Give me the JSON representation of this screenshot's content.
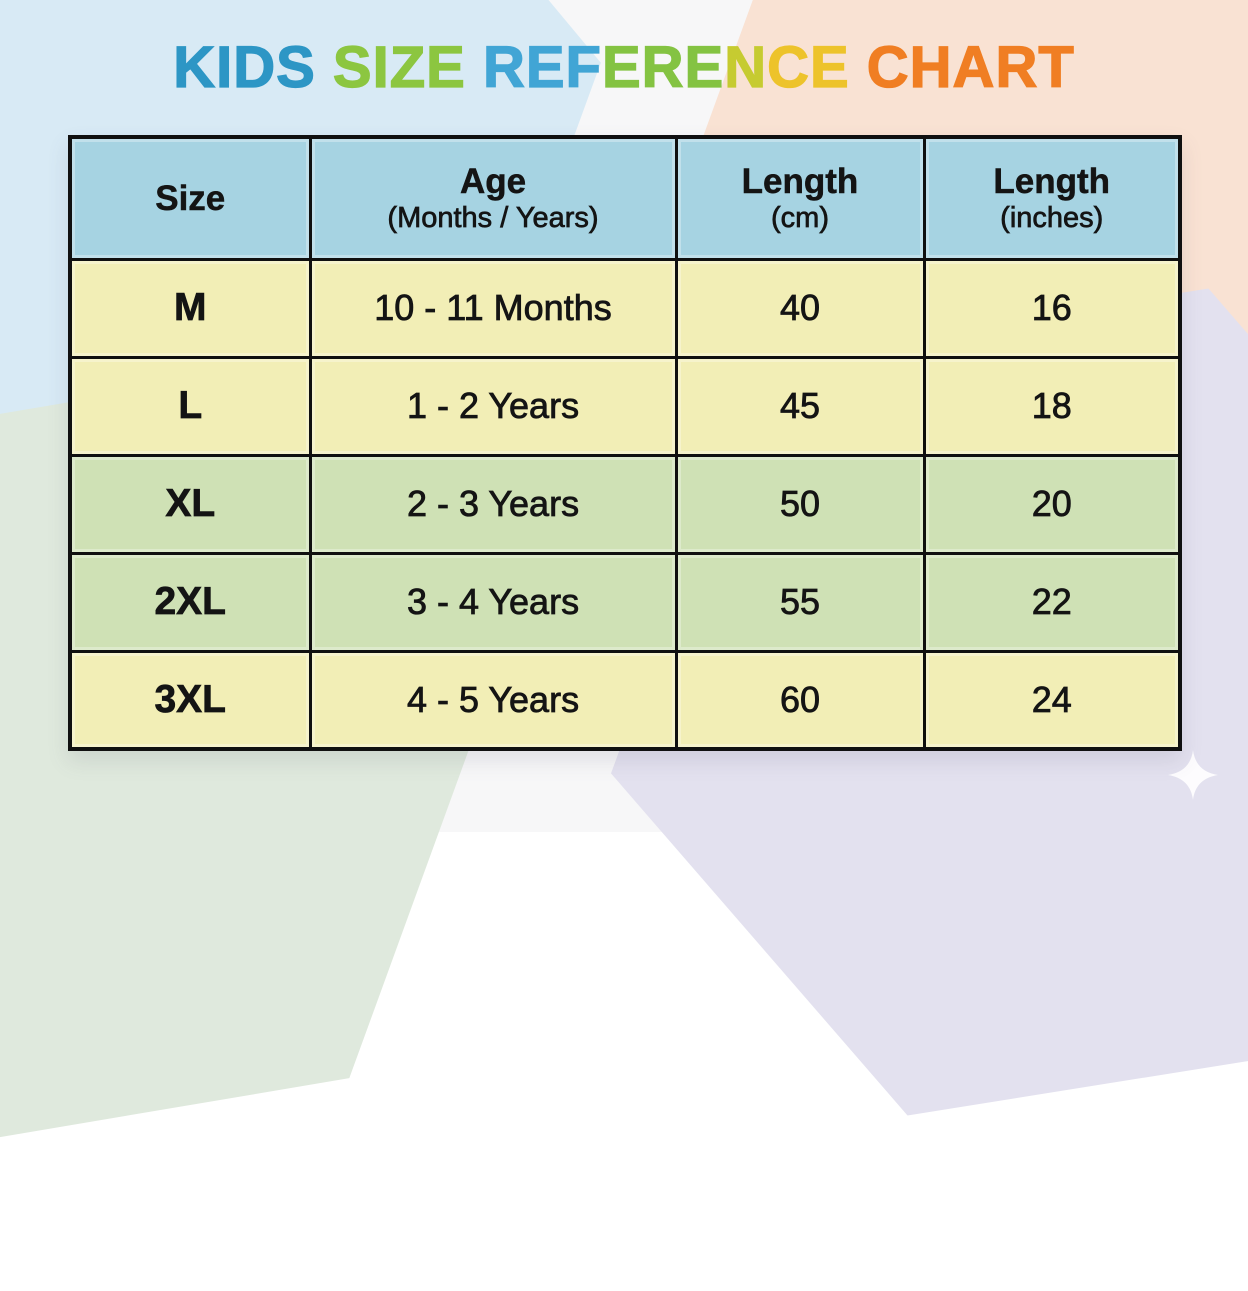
{
  "title": {
    "full_text": "KIDS SIZE REFERENCE CHART",
    "segments": [
      {
        "text": "KIDS ",
        "color": "#2D96C5"
      },
      {
        "text": "SIZE ",
        "color": "#8CC640"
      },
      {
        "text": "REF",
        "color": "#41A5D5"
      },
      {
        "text": "ERE",
        "color": "#84C342"
      },
      {
        "text": "N",
        "color": "#C6CB31"
      },
      {
        "text": "CE ",
        "color": "#EDC32B"
      },
      {
        "text": "CHART",
        "color": "#F07E23"
      }
    ]
  },
  "table": {
    "header_bg": "#A6D3E2",
    "row_colors": {
      "yellow": "#F2EEB6",
      "green": "#CFE1B5"
    },
    "header": {
      "columns": [
        {
          "label": "Size",
          "sublabel": ""
        },
        {
          "label": "Age",
          "sublabel": "(Months / Years)"
        },
        {
          "label": "Length",
          "sublabel": "(cm)"
        },
        {
          "label": "Length",
          "sublabel": "(inches)"
        }
      ]
    },
    "rows": [
      {
        "size": "M",
        "age": "10 - 11 Months",
        "length_cm": "40",
        "length_inches": "16",
        "tint": "yellow"
      },
      {
        "size": "L",
        "age": "1 - 2 Years",
        "length_cm": "45",
        "length_inches": "18",
        "tint": "yellow"
      },
      {
        "size": "XL",
        "age": "2 - 3 Years",
        "length_cm": "50",
        "length_inches": "20",
        "tint": "green"
      },
      {
        "size": "2XL",
        "age": "3 - 4 Years",
        "length_cm": "55",
        "length_inches": "22",
        "tint": "green"
      },
      {
        "size": "3XL",
        "age": "4 - 5 Years",
        "length_cm": "60",
        "length_inches": "24",
        "tint": "yellow"
      }
    ]
  },
  "background": {
    "base": "#F7F7F8",
    "hexagons": [
      {
        "name": "top-left",
        "color": "#D8EAF5"
      },
      {
        "name": "top-right",
        "color": "#F9E2D3"
      },
      {
        "name": "bottom-left",
        "color": "#DFE9DD"
      },
      {
        "name": "bottom-right",
        "color": "#E3E1EF"
      }
    ],
    "sparkle_color": "#FFFFFF"
  },
  "chart_data": {
    "type": "table",
    "title": "KIDS SIZE REFERENCE CHART",
    "columns": [
      "Size",
      "Age (Months / Years)",
      "Length (cm)",
      "Length (inches)"
    ],
    "rows": [
      [
        "M",
        "10 - 11 Months",
        "40",
        "16"
      ],
      [
        "L",
        "1 - 2 Years",
        "45",
        "18"
      ],
      [
        "XL",
        "2 - 3 Years",
        "50",
        "20"
      ],
      [
        "2XL",
        "3 - 4 Years",
        "55",
        "22"
      ],
      [
        "3XL",
        "4 - 5 Years",
        "60",
        "24"
      ]
    ]
  }
}
